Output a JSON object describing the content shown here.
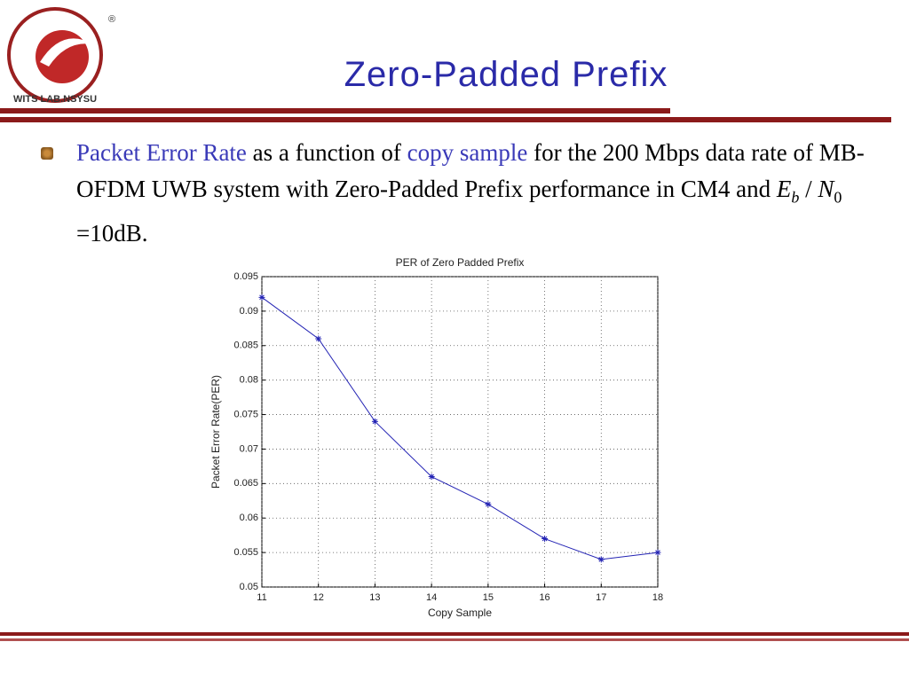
{
  "slide": {
    "title": "Zero-Padded Prefix",
    "logo_text": "WITS LAB.NSYSU",
    "logo_mark": "®",
    "body": [
      "Packet Error Rate",
      " as a function of ",
      "copy sample",
      " for the 200 Mbps data rate of MB-OFDM UWB system with Zero-Padded Prefix performance in CM4 and "
    ],
    "formula": [
      "E",
      "b",
      "/",
      "N",
      "0",
      "=",
      "10dB."
    ]
  },
  "chart_data": {
    "type": "line",
    "title": "PER of Zero Padded Prefix",
    "xlabel": "Copy Sample",
    "ylabel": "Packet Error Rate(PER)",
    "x": [
      11,
      12,
      13,
      14,
      15,
      16,
      17,
      18
    ],
    "series": [
      {
        "color": "#2323b4",
        "values": [
          0.092,
          0.086,
          0.074,
          0.066,
          0.062,
          0.057,
          0.054,
          0.055
        ]
      }
    ],
    "xlim": [
      11,
      18
    ],
    "xticks": [
      11,
      12,
      13,
      14,
      15,
      16,
      17,
      18
    ],
    "ylim": [
      0.05,
      0.095
    ],
    "yticks": [
      0.05,
      0.055,
      0.06,
      0.065,
      0.07,
      0.075,
      0.08,
      0.085,
      0.09,
      0.095
    ],
    "grid": true
  }
}
